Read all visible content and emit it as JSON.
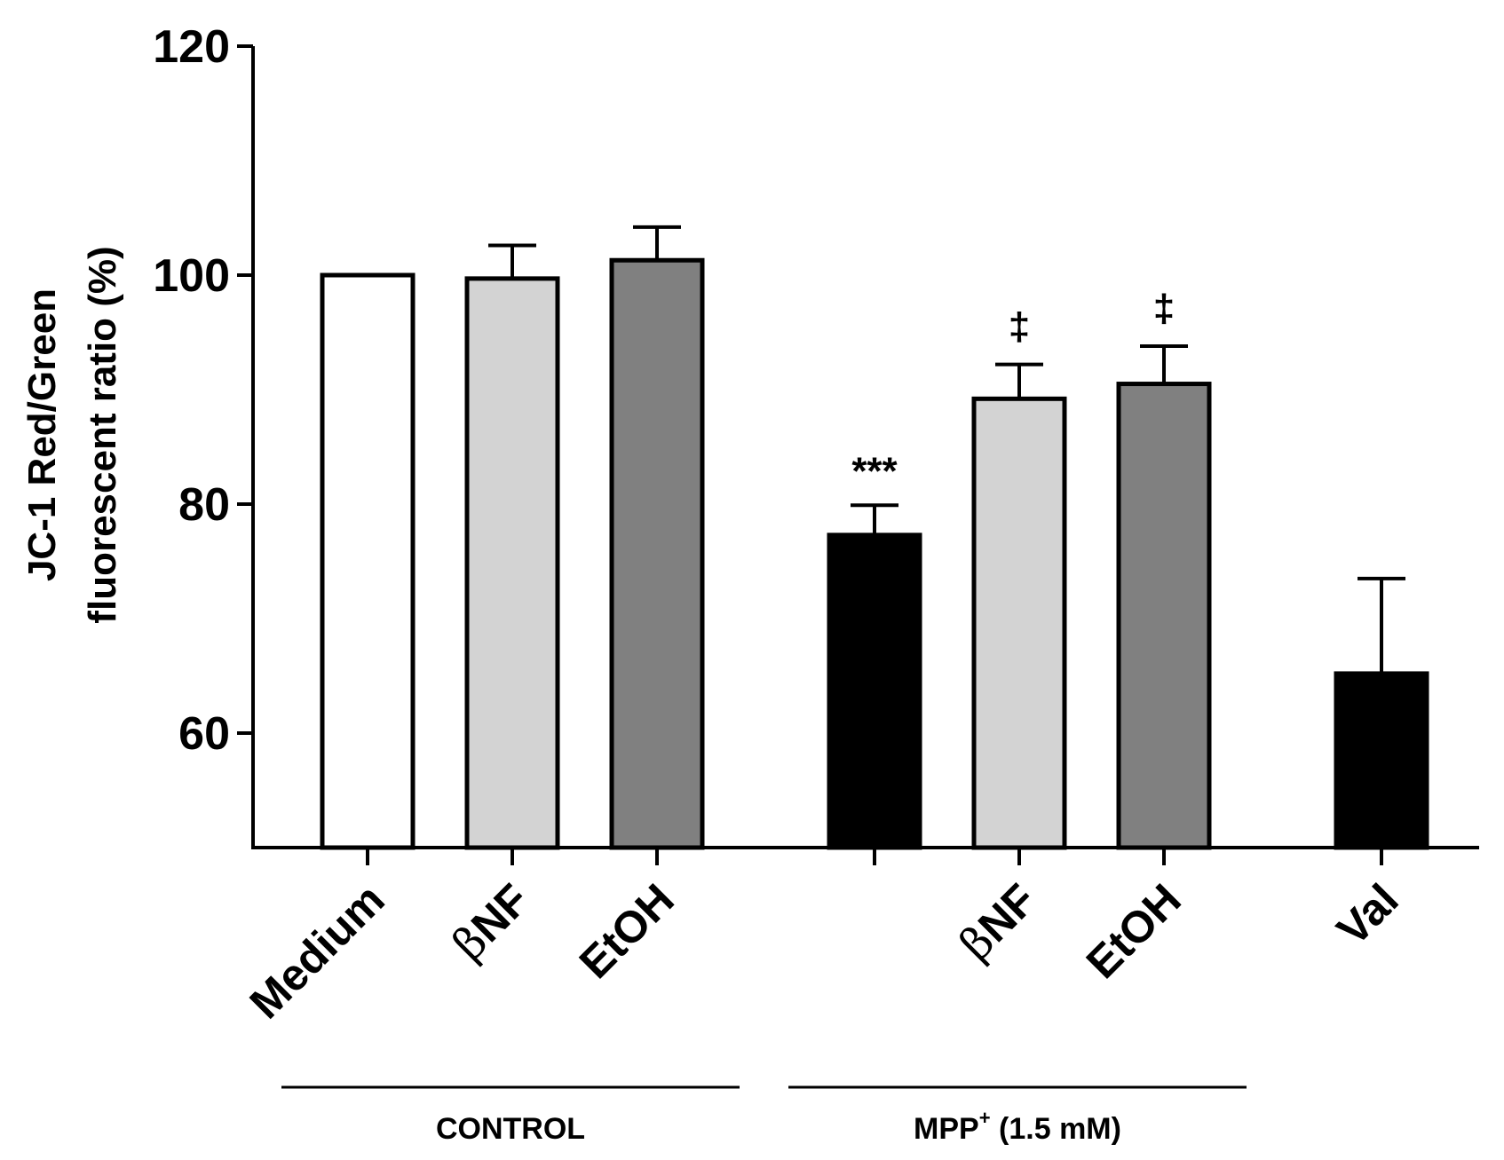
{
  "chart_data": {
    "type": "bar",
    "title": "",
    "xlabel": "",
    "ylabel_lines": [
      "JC-1 Red/Green",
      "fluorescent ratio (%)"
    ],
    "ylim": [
      50,
      120
    ],
    "yticks": [
      60,
      80,
      100,
      120
    ],
    "bars": [
      {
        "label": "Medium",
        "value": 100,
        "error": 0,
        "fill": "#ffffff",
        "annotation": ""
      },
      {
        "label": "βNF",
        "value": 99.7,
        "error": 2.9,
        "fill": "#d3d3d3",
        "annotation": ""
      },
      {
        "label": "EtOH",
        "value": 101.3,
        "error": 2.9,
        "fill": "#808080",
        "annotation": ""
      },
      {
        "label": "",
        "value": 77.3,
        "error": 2.6,
        "fill": "#000000",
        "annotation": "***"
      },
      {
        "label": "βNF",
        "value": 89.2,
        "error": 3.0,
        "fill": "#d3d3d3",
        "annotation": "‡"
      },
      {
        "label": "EtOH",
        "value": 90.5,
        "error": 3.3,
        "fill": "#808080",
        "annotation": "‡"
      },
      {
        "label": "Val",
        "value": 65.2,
        "error": 8.3,
        "fill": "#000000",
        "annotation": ""
      }
    ],
    "groups": [
      {
        "label": "CONTROL",
        "bars": [
          0,
          1,
          2
        ]
      },
      {
        "label_main": "MPP",
        "label_sup": "+",
        "label_rest": " (1.5 mM)",
        "bars": [
          3,
          4,
          5
        ]
      }
    ]
  }
}
